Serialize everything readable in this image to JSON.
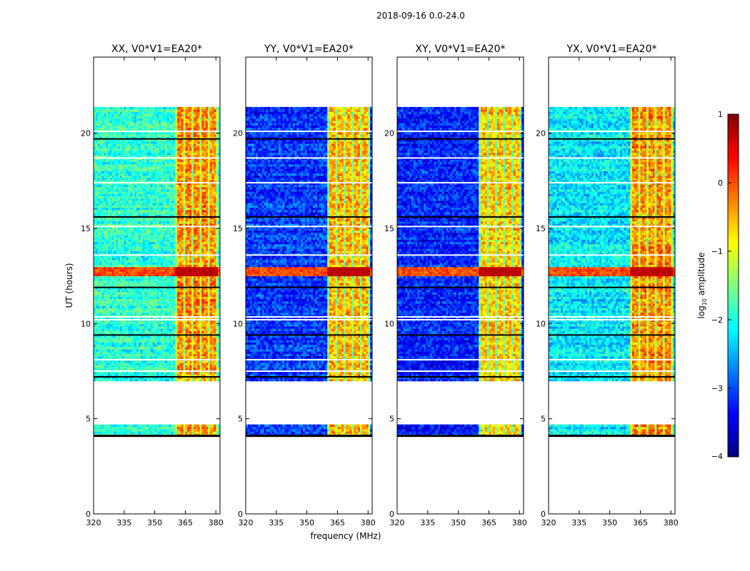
{
  "figure": {
    "suptitle": "2018-09-16 0.0-24.0",
    "xlabel": "frequency (MHz)",
    "ylabel": "UT (hours)"
  },
  "colorbar": {
    "label_pre": "log",
    "label_sub": "10",
    "label_post": " amplitude",
    "ticks": [
      1,
      0,
      -1,
      -2,
      -3,
      -4
    ],
    "tick_labels": [
      "1",
      "0",
      "−1",
      "−2",
      "−3",
      "−4"
    ],
    "range": [
      -4,
      1
    ],
    "stops": [
      "#00007f",
      "#0000ff",
      "#007fff",
      "#00ffff",
      "#7fff7f",
      "#ffff00",
      "#ff7f00",
      "#ff0000",
      "#7f0000"
    ]
  },
  "chart_data": [
    {
      "type": "heatmap",
      "title": "XX, V0*V1=EA20*",
      "xlim": [
        320,
        382
      ],
      "ylim": [
        0,
        24
      ],
      "xticks": [
        320,
        335,
        350,
        365,
        380
      ],
      "xtick_labels": [
        "320",
        "335",
        "350",
        "365",
        "380"
      ],
      "yticks": [
        0,
        5,
        10,
        15,
        20
      ],
      "ytick_labels": [
        "0",
        "5",
        "10",
        "15",
        "20"
      ],
      "data_hours": [
        4.1,
        21.3
      ],
      "gap_hours": [
        4.6,
        6.9
      ],
      "band_mhz": [
        359.5,
        380.5
      ],
      "background_level": -1.9,
      "band_level": -0.3,
      "strong_rfi_hours": [
        12.4,
        12.9
      ],
      "strong_rfi_level": 0.6
    },
    {
      "type": "heatmap",
      "title": "YY, V0*V1=EA20*",
      "xlim": [
        320,
        382
      ],
      "ylim": [
        0,
        24
      ],
      "xticks": [
        320,
        335,
        350,
        365,
        380
      ],
      "xtick_labels": [
        "320",
        "335",
        "350",
        "365",
        "380"
      ],
      "yticks": [
        0,
        5,
        10,
        15,
        20
      ],
      "ytick_labels": [
        "0",
        "5",
        "10",
        "15",
        "20"
      ],
      "data_hours": [
        4.1,
        21.3
      ],
      "gap_hours": [
        4.6,
        6.9
      ],
      "band_mhz": [
        359.5,
        380.5
      ],
      "background_level": -3.1,
      "band_level": -0.5,
      "strong_rfi_hours": [
        12.4,
        12.9
      ],
      "strong_rfi_level": 0.6
    },
    {
      "type": "heatmap",
      "title": "XY, V0*V1=EA20*",
      "xlim": [
        320,
        382
      ],
      "ylim": [
        0,
        24
      ],
      "xticks": [
        320,
        335,
        350,
        365,
        380
      ],
      "xtick_labels": [
        "320",
        "335",
        "350",
        "365",
        "380"
      ],
      "yticks": [
        0,
        5,
        10,
        15,
        20
      ],
      "ytick_labels": [
        "0",
        "5",
        "10",
        "15",
        "20"
      ],
      "data_hours": [
        4.1,
        21.3
      ],
      "gap_hours": [
        4.6,
        6.9
      ],
      "band_mhz": [
        359.5,
        380.5
      ],
      "background_level": -3.2,
      "band_level": -0.6,
      "strong_rfi_hours": [
        12.4,
        12.9
      ],
      "strong_rfi_level": 0.6
    },
    {
      "type": "heatmap",
      "title": "YX, V0*V1=EA20*",
      "xlim": [
        320,
        382
      ],
      "ylim": [
        0,
        24
      ],
      "xticks": [
        320,
        335,
        350,
        365,
        380
      ],
      "xtick_labels": [
        "320",
        "335",
        "350",
        "365",
        "380"
      ],
      "yticks": [
        0,
        5,
        10,
        15,
        20
      ],
      "ytick_labels": [
        "0",
        "5",
        "10",
        "15",
        "20"
      ],
      "data_hours": [
        4.1,
        21.3
      ],
      "gap_hours": [
        4.6,
        6.9
      ],
      "band_mhz": [
        359.5,
        380.5
      ],
      "background_level": -2.2,
      "band_level": -0.3,
      "strong_rfi_hours": [
        12.4,
        12.9
      ],
      "strong_rfi_level": 0.6
    }
  ]
}
